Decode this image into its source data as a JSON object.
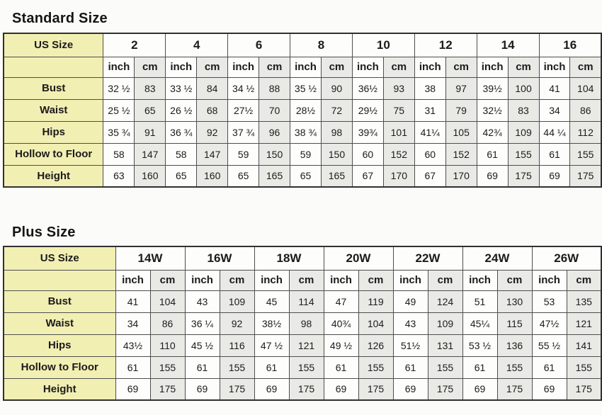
{
  "colors": {
    "label_background": "#f2efb3",
    "cm_column_background": "#e9e9e5",
    "inch_column_background": "#fdfdfc",
    "border": "#4e4e4e",
    "text": "#1b1b1b"
  },
  "chart_data": {
    "type": "table",
    "tables": [
      {
        "title": "Standard Size",
        "corner_label": "US Size",
        "unit_labels": [
          "inch",
          "cm"
        ],
        "sizes": [
          "2",
          "4",
          "6",
          "8",
          "10",
          "12",
          "14",
          "16"
        ],
        "rows": [
          {
            "label": "Bust",
            "values": [
              [
                "32 ½",
                "83"
              ],
              [
                "33 ½",
                "84"
              ],
              [
                "34 ½",
                "88"
              ],
              [
                "35 ½",
                "90"
              ],
              [
                "36½",
                "93"
              ],
              [
                "38",
                "97"
              ],
              [
                "39½",
                "100"
              ],
              [
                "41",
                "104"
              ]
            ]
          },
          {
            "label": "Waist",
            "values": [
              [
                "25 ½",
                "65"
              ],
              [
                "26 ½",
                "68"
              ],
              [
                "27½",
                "70"
              ],
              [
                "28½",
                "72"
              ],
              [
                "29½",
                "75"
              ],
              [
                "31",
                "79"
              ],
              [
                "32½",
                "83"
              ],
              [
                "34",
                "86"
              ]
            ]
          },
          {
            "label": "Hips",
            "values": [
              [
                "35 ¾",
                "91"
              ],
              [
                "36 ¾",
                "92"
              ],
              [
                "37 ¾",
                "96"
              ],
              [
                "38 ¾",
                "98"
              ],
              [
                "39¾",
                "101"
              ],
              [
                "41¼",
                "105"
              ],
              [
                "42¾",
                "109"
              ],
              [
                "44 ¼",
                "112"
              ]
            ]
          },
          {
            "label": "Hollow to Floor",
            "values": [
              [
                "58",
                "147"
              ],
              [
                "58",
                "147"
              ],
              [
                "59",
                "150"
              ],
              [
                "59",
                "150"
              ],
              [
                "60",
                "152"
              ],
              [
                "60",
                "152"
              ],
              [
                "61",
                "155"
              ],
              [
                "61",
                "155"
              ]
            ]
          },
          {
            "label": "Height",
            "values": [
              [
                "63",
                "160"
              ],
              [
                "65",
                "160"
              ],
              [
                "65",
                "165"
              ],
              [
                "65",
                "165"
              ],
              [
                "67",
                "170"
              ],
              [
                "67",
                "170"
              ],
              [
                "69",
                "175"
              ],
              [
                "69",
                "175"
              ]
            ]
          }
        ]
      },
      {
        "title": "Plus Size",
        "corner_label": "US Size",
        "unit_labels": [
          "inch",
          "cm"
        ],
        "sizes": [
          "14W",
          "16W",
          "18W",
          "20W",
          "22W",
          "24W",
          "26W"
        ],
        "rows": [
          {
            "label": "Bust",
            "values": [
              [
                "41",
                "104"
              ],
              [
                "43",
                "109"
              ],
              [
                "45",
                "114"
              ],
              [
                "47",
                "119"
              ],
              [
                "49",
                "124"
              ],
              [
                "51",
                "130"
              ],
              [
                "53",
                "135"
              ]
            ]
          },
          {
            "label": "Waist",
            "values": [
              [
                "34",
                "86"
              ],
              [
                "36 ¼",
                "92"
              ],
              [
                "38½",
                "98"
              ],
              [
                "40¾",
                "104"
              ],
              [
                "43",
                "109"
              ],
              [
                "45¼",
                "115"
              ],
              [
                "47½",
                "121"
              ]
            ]
          },
          {
            "label": "Hips",
            "values": [
              [
                "43½",
                "110"
              ],
              [
                "45 ½",
                "116"
              ],
              [
                "47 ½",
                "121"
              ],
              [
                "49 ½",
                "126"
              ],
              [
                "51½",
                "131"
              ],
              [
                "53 ½",
                "136"
              ],
              [
                "55 ½",
                "141"
              ]
            ]
          },
          {
            "label": "Hollow to Floor",
            "values": [
              [
                "61",
                "155"
              ],
              [
                "61",
                "155"
              ],
              [
                "61",
                "155"
              ],
              [
                "61",
                "155"
              ],
              [
                "61",
                "155"
              ],
              [
                "61",
                "155"
              ],
              [
                "61",
                "155"
              ]
            ]
          },
          {
            "label": "Height",
            "values": [
              [
                "69",
                "175"
              ],
              [
                "69",
                "175"
              ],
              [
                "69",
                "175"
              ],
              [
                "69",
                "175"
              ],
              [
                "69",
                "175"
              ],
              [
                "69",
                "175"
              ],
              [
                "69",
                "175"
              ]
            ]
          }
        ]
      }
    ]
  }
}
